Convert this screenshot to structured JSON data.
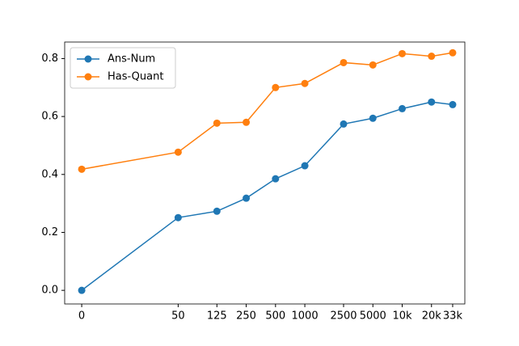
{
  "chart_data": {
    "type": "line",
    "x": [
      0,
      50,
      125,
      250,
      500,
      1000,
      2500,
      5000,
      10000,
      20000,
      33000
    ],
    "xscale": "symlog",
    "xlim": [
      -6,
      44000
    ],
    "xticks": [
      0,
      50,
      125,
      250,
      500,
      1000,
      2500,
      5000,
      {
        "value": 10000,
        "label": "10k"
      },
      {
        "value": 20000,
        "label": "20k"
      },
      {
        "value": 33000,
        "label": "33k"
      }
    ],
    "ylim": [
      -0.047,
      0.857
    ],
    "yticks": [
      {
        "value": 0,
        "label": "0.0"
      },
      0.2,
      0.4,
      0.6,
      0.8
    ],
    "legend": "upper left",
    "series": [
      {
        "name": "Ans-Num",
        "color": "#1f77b4",
        "values": [
          0.0,
          0.251,
          0.273,
          0.318,
          0.385,
          0.43,
          0.574,
          0.594,
          0.627,
          0.65,
          0.641
        ]
      },
      {
        "name": "Has-Quant",
        "color": "#ff7f0e",
        "values": [
          0.418,
          0.477,
          0.577,
          0.58,
          0.7,
          0.714,
          0.786,
          0.778,
          0.817,
          0.808,
          0.82
        ]
      }
    ]
  }
}
